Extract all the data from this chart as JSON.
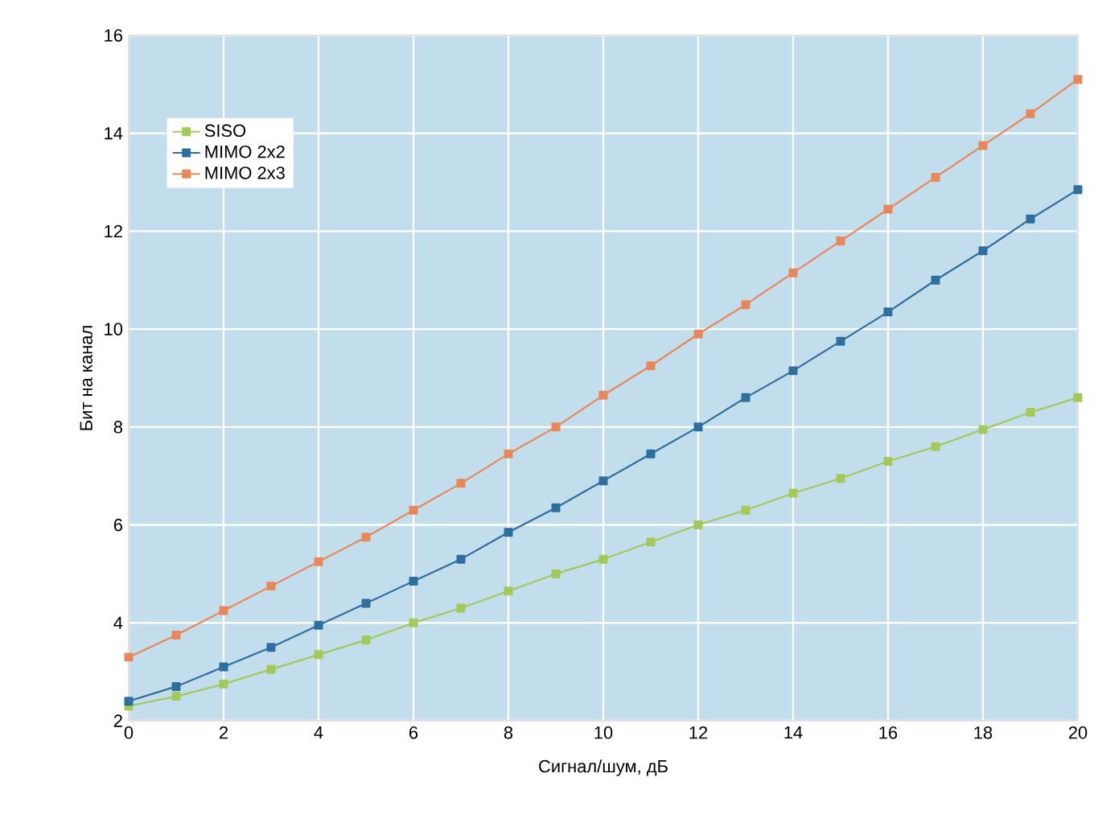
{
  "chart_data": {
    "type": "line",
    "xlabel": "Сигнал/шум, дБ",
    "ylabel": "Бит на канал",
    "x": [
      0,
      1,
      2,
      3,
      4,
      5,
      6,
      7,
      8,
      9,
      10,
      11,
      12,
      13,
      14,
      15,
      16,
      17,
      18,
      19,
      20
    ],
    "series": [
      {
        "name": "SISO",
        "color": "#a3c95a",
        "values": [
          2.3,
          2.5,
          2.75,
          3.05,
          3.35,
          3.65,
          4.0,
          4.3,
          4.65,
          5.0,
          5.3,
          5.65,
          6.0,
          6.3,
          6.65,
          6.95,
          7.3,
          7.6,
          7.95,
          8.3,
          8.6
        ]
      },
      {
        "name": "MIMO 2x2",
        "color": "#2f6f9e",
        "values": [
          2.4,
          2.7,
          3.1,
          3.5,
          3.95,
          4.4,
          4.85,
          5.3,
          5.85,
          6.35,
          6.9,
          7.45,
          8.0,
          8.6,
          9.15,
          9.75,
          10.35,
          11.0,
          11.6,
          12.25,
          12.85
        ]
      },
      {
        "name": "MIMO 2x3",
        "color": "#e8885a",
        "values": [
          3.3,
          3.75,
          4.25,
          4.75,
          5.25,
          5.75,
          6.3,
          6.85,
          7.45,
          8.0,
          8.65,
          9.25,
          9.9,
          10.5,
          11.15,
          11.8,
          12.45,
          13.1,
          13.75,
          14.4,
          15.1
        ]
      }
    ],
    "xlim": [
      0,
      20
    ],
    "ylim": [
      2,
      16
    ],
    "xticks": [
      0,
      2,
      4,
      6,
      8,
      10,
      12,
      14,
      16,
      18,
      20
    ],
    "yticks": [
      2,
      4,
      6,
      8,
      10,
      12,
      14,
      16
    ],
    "grid": true,
    "legend": "top left",
    "marker": "square",
    "line_style": "solid"
  }
}
